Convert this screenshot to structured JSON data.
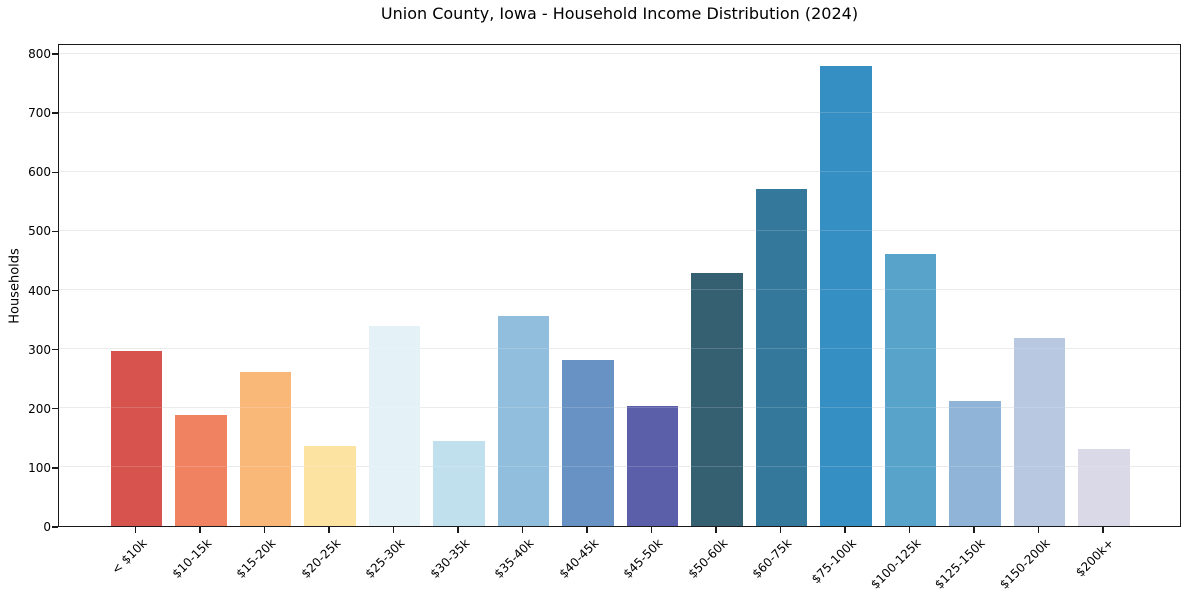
{
  "chart_data": {
    "type": "bar",
    "title": "Union County, Iowa - Household Income Distribution (2024)",
    "xlabel": "",
    "ylabel": "Households",
    "categories": [
      "< $10k",
      "$10-15k",
      "$15-20k",
      "$20-25k",
      "$25-30k",
      "$30-35k",
      "$35-40k",
      "$40-45k",
      "$45-50k",
      "$50-60k",
      "$60-75k",
      "$75-100k",
      "$100-125k",
      "$125-150k",
      "$150-200k",
      "$200k+"
    ],
    "values": [
      296,
      188,
      261,
      136,
      338,
      143,
      356,
      281,
      203,
      428,
      570,
      778,
      460,
      212,
      318,
      130
    ],
    "bar_colors": [
      "#d6534e",
      "#f08262",
      "#fab878",
      "#fde3a2",
      "#e4f1f6",
      "#bfe0ec",
      "#92bedd",
      "#6892c4",
      "#5b5fa9",
      "#356072",
      "#34789c",
      "#368fc3",
      "#58a3ca",
      "#8fb4d7",
      "#b7c8e0",
      "#d9d9e8"
    ],
    "ylim": [
      0,
      817
    ],
    "yticks": [
      0,
      100,
      200,
      300,
      400,
      500,
      600,
      700,
      800
    ],
    "grid": "horizontal",
    "legend": "none",
    "background": "#ffffff",
    "grid_color": "#e7e7e7",
    "axis_color": "#1a1a1a"
  }
}
